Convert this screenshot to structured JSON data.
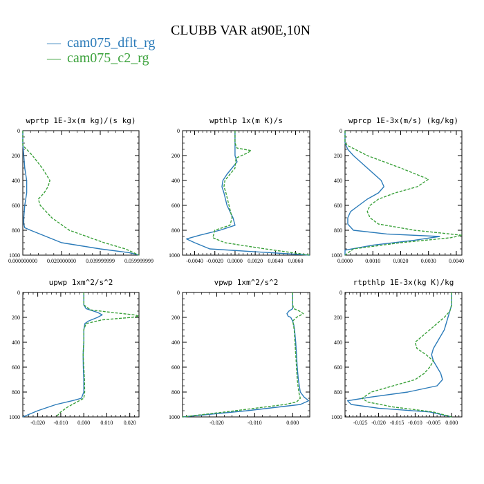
{
  "figure_title": "CLUBB VAR at90E,10N",
  "legend": [
    {
      "marker": "—",
      "label": "cam075_dflt_rg",
      "color": "#2b7bb9"
    },
    {
      "marker": "—",
      "label": "cam075_c2_rg",
      "color": "#3aa13a"
    }
  ],
  "colors": {
    "dflt": "#2b7bb9",
    "c2": "#3aa13a"
  },
  "chart_data": [
    {
      "type": "line",
      "title": "wprtp   1E-3x(m kg)/(s kg)",
      "xlim": [
        0,
        0.06
      ],
      "ylim": [
        1000,
        0
      ],
      "xticks": [
        0,
        0.02,
        0.04,
        0.06
      ],
      "xtick_labels": [
        "0.000000000",
        "0.020000000",
        "0.039999999",
        "0.059999999"
      ],
      "yticks": [
        0,
        200,
        400,
        600,
        800,
        1000
      ],
      "ytick_labels": [
        "0",
        "200",
        "400",
        "600",
        "800",
        "1000"
      ],
      "series": [
        {
          "name": "cam075_dflt_rg",
          "style": "solid",
          "y": [
            0,
            100,
            200,
            300,
            400,
            500,
            600,
            700,
            750,
            780,
            800,
            850,
            900,
            950,
            980,
            1000
          ],
          "x": [
            0,
            0,
            0.0005,
            0.001,
            0.002,
            0.002,
            0.001,
            0.0005,
            0.0005,
            0.001,
            0.004,
            0.012,
            0.02,
            0.04,
            0.055,
            0.06
          ]
        },
        {
          "name": "cam075_c2_rg",
          "style": "dashed",
          "y": [
            0,
            120,
            150,
            200,
            300,
            400,
            450,
            500,
            550,
            600,
            700,
            800,
            850,
            900,
            950,
            1000
          ],
          "x": [
            0,
            0,
            0.002,
            0.005,
            0.01,
            0.014,
            0.013,
            0.011,
            0.008,
            0.009,
            0.015,
            0.024,
            0.033,
            0.042,
            0.053,
            0.06
          ]
        }
      ]
    },
    {
      "type": "line",
      "title": "wpthlp   1x(m K)/s",
      "xlim": [
        -0.0052,
        0.0074
      ],
      "ylim": [
        1000,
        0
      ],
      "xticks": [
        -0.004,
        -0.002,
        0,
        0.002,
        0.004,
        0.006
      ],
      "xtick_labels": [
        "-0.0040",
        "-0.0020",
        "0.0000",
        "0.0020",
        "0.0040",
        "0.0060"
      ],
      "yticks": [
        0,
        200,
        400,
        600,
        800,
        1000
      ],
      "ytick_labels": [
        "0",
        "200",
        "400",
        "600",
        "800",
        "1000"
      ],
      "series": [
        {
          "name": "cam075_dflt_rg",
          "style": "solid",
          "y": [
            0,
            100,
            150,
            200,
            250,
            300,
            350,
            400,
            450,
            500,
            600,
            700,
            760,
            800,
            840,
            870,
            900,
            950,
            1000
          ],
          "x": [
            0,
            0,
            0,
            0,
            0.0002,
            -0.0003,
            -0.0008,
            -0.0012,
            -0.0013,
            -0.0011,
            -0.0008,
            -0.0002,
            0,
            -0.0015,
            -0.0035,
            -0.0048,
            -0.004,
            -0.0025,
            0.0074
          ]
        },
        {
          "name": "cam075_c2_rg",
          "style": "dashed",
          "y": [
            0,
            100,
            140,
            160,
            180,
            220,
            300,
            350,
            400,
            450,
            500,
            600,
            700,
            760,
            800,
            860,
            900,
            950,
            1000
          ],
          "x": [
            0,
            0,
            0.0002,
            0.0016,
            0.0012,
            0.0001,
            0,
            -0.0005,
            -0.001,
            -0.0011,
            -0.0009,
            -0.0006,
            -0.0003,
            -0.0005,
            -0.002,
            -0.0022,
            -0.001,
            0.003,
            0.0074
          ]
        }
      ]
    },
    {
      "type": "line",
      "title": "wprcp   1E-3x(m/s) (kg/kg)",
      "xlim": [
        0,
        0.0042
      ],
      "ylim": [
        1000,
        0
      ],
      "xticks": [
        0,
        0.001,
        0.002,
        0.003,
        0.004
      ],
      "xtick_labels": [
        "0.0000",
        "0.0010",
        "0.0020",
        "0.0030",
        "0.0040"
      ],
      "yticks": [
        0,
        200,
        400,
        600,
        800,
        1000
      ],
      "ytick_labels": [
        "0",
        "200",
        "400",
        "600",
        "800",
        "1000"
      ],
      "series": [
        {
          "name": "cam075_dflt_rg",
          "style": "solid",
          "y": [
            0,
            100,
            150,
            200,
            300,
            400,
            450,
            500,
            550,
            600,
            650,
            700,
            750,
            800,
            830,
            850,
            880,
            920,
            960,
            1000
          ],
          "x": [
            0,
            0,
            0.0001,
            0.0003,
            0.0008,
            0.0013,
            0.0014,
            0.0012,
            0.0008,
            0.0005,
            0.0002,
            0.0001,
            0.0001,
            0.0003,
            0.0015,
            0.0034,
            0.0025,
            0.001,
            0,
            0
          ]
        },
        {
          "name": "cam075_c2_rg",
          "style": "dashed",
          "y": [
            0,
            100,
            120,
            200,
            300,
            390,
            450,
            500,
            550,
            600,
            650,
            700,
            750,
            800,
            840,
            860,
            900,
            950,
            1000
          ],
          "x": [
            0,
            0,
            0.0001,
            0.0008,
            0.002,
            0.003,
            0.0026,
            0.0018,
            0.0012,
            0.0009,
            0.0008,
            0.0009,
            0.0012,
            0.0025,
            0.0042,
            0.0038,
            0.002,
            0.0003,
            0
          ]
        }
      ]
    },
    {
      "type": "line",
      "title": "upwp   1xm^2/s^2",
      "xlim": [
        -0.0265,
        0.024
      ],
      "ylim": [
        1000,
        0
      ],
      "xticks": [
        -0.02,
        -0.01,
        0,
        0.01,
        0.02
      ],
      "xtick_labels": [
        "-0.020",
        "-0.010",
        "0.000",
        "0.010",
        "0.020"
      ],
      "yticks": [
        0,
        200,
        400,
        600,
        800,
        1000
      ],
      "ytick_labels": [
        "0",
        "200",
        "400",
        "600",
        "800",
        "1000"
      ],
      "series": [
        {
          "name": "cam075_dflt_rg",
          "style": "solid",
          "y": [
            0,
            100,
            130,
            160,
            180,
            200,
            230,
            250,
            300,
            400,
            500,
            600,
            700,
            800,
            850,
            870,
            900,
            950,
            1000
          ],
          "x": [
            0,
            0,
            0.001,
            0.006,
            0.008,
            0.006,
            0.002,
            0.0005,
            0,
            0,
            -0.0003,
            -0.0002,
            0,
            0,
            -0.001,
            -0.005,
            -0.012,
            -0.02,
            -0.0265
          ]
        },
        {
          "name": "cam075_c2_rg",
          "style": "dashed",
          "y": [
            0,
            100,
            140,
            160,
            180,
            190,
            200,
            220,
            250,
            300,
            400,
            500,
            600,
            700,
            800,
            850,
            880,
            920,
            960,
            1000
          ],
          "x": [
            0,
            0,
            0.003,
            0.012,
            0.022,
            0.024,
            0.021,
            0.008,
            0.001,
            0,
            0,
            -0.0003,
            0,
            0.0003,
            0.0004,
            0,
            -0.003,
            -0.007,
            -0.01,
            -0.012
          ]
        }
      ]
    },
    {
      "type": "line",
      "title": "vpwp   1xm^2/s^2",
      "xlim": [
        -0.029,
        0.0045
      ],
      "ylim": [
        1000,
        0
      ],
      "xticks": [
        -0.02,
        -0.01,
        0
      ],
      "xtick_labels": [
        "-0.020",
        "-0.010",
        "0.000"
      ],
      "yticks": [
        0,
        200,
        400,
        600,
        800,
        1000
      ],
      "ytick_labels": [
        "0",
        "200",
        "400",
        "600",
        "800",
        "1000"
      ],
      "series": [
        {
          "name": "cam075_dflt_rg",
          "style": "solid",
          "y": [
            0,
            130,
            150,
            170,
            190,
            200,
            230,
            260,
            300,
            400,
            500,
            600,
            700,
            800,
            840,
            870,
            900,
            950,
            1000
          ],
          "x": [
            0,
            0,
            -0.001,
            -0.0015,
            -0.0012,
            -0.0005,
            0,
            0.0003,
            0.0005,
            0.0008,
            0.001,
            0.0012,
            0.0015,
            0.002,
            0.003,
            0.0042,
            0.002,
            -0.012,
            -0.029
          ]
        },
        {
          "name": "cam075_c2_rg",
          "style": "dashed",
          "y": [
            0,
            100,
            130,
            150,
            170,
            200,
            230,
            260,
            300,
            400,
            500,
            600,
            700,
            800,
            850,
            880,
            900,
            950,
            1000
          ],
          "x": [
            0,
            0,
            0.0003,
            0.0018,
            0.0028,
            0.001,
            0,
            0.0002,
            0.0004,
            0.0006,
            0.0008,
            0.001,
            0.0012,
            0.0016,
            0.002,
            0.001,
            -0.002,
            -0.015,
            -0.029
          ]
        }
      ]
    },
    {
      "type": "line",
      "title": "rtpthlp   1E-3x(kg K)/kg",
      "xlim": [
        -0.0292,
        0.0028
      ],
      "ylim": [
        1000,
        0
      ],
      "xticks": [
        -0.025,
        -0.02,
        -0.015,
        -0.01,
        -0.005,
        0
      ],
      "xtick_labels": [
        "-0.025",
        "-0.020",
        "-0.015",
        "-0.010",
        "-0.005",
        "0.000"
      ],
      "yticks": [
        0,
        200,
        400,
        600,
        800,
        1000
      ],
      "ytick_labels": [
        "0",
        "200",
        "400",
        "600",
        "800",
        "1000"
      ],
      "series": [
        {
          "name": "cam075_dflt_rg",
          "style": "solid",
          "y": [
            0,
            100,
            200,
            300,
            400,
            450,
            500,
            550,
            600,
            650,
            700,
            750,
            800,
            840,
            870,
            900,
            930,
            960,
            1000
          ],
          "x": [
            0,
            0,
            -0.001,
            -0.002,
            -0.004,
            -0.005,
            -0.0055,
            -0.005,
            -0.004,
            -0.003,
            -0.0025,
            -0.004,
            -0.012,
            -0.022,
            -0.0285,
            -0.0275,
            -0.02,
            -0.006,
            0
          ]
        },
        {
          "name": "cam075_c2_rg",
          "style": "dashed",
          "y": [
            0,
            100,
            150,
            200,
            300,
            400,
            450,
            500,
            550,
            600,
            650,
            700,
            750,
            800,
            850,
            880,
            920,
            960,
            1000
          ],
          "x": [
            0,
            0,
            -0.0005,
            -0.002,
            -0.006,
            -0.01,
            -0.0095,
            -0.007,
            -0.005,
            -0.006,
            -0.0075,
            -0.01,
            -0.016,
            -0.022,
            -0.0245,
            -0.023,
            -0.016,
            -0.005,
            0
          ]
        }
      ]
    }
  ]
}
